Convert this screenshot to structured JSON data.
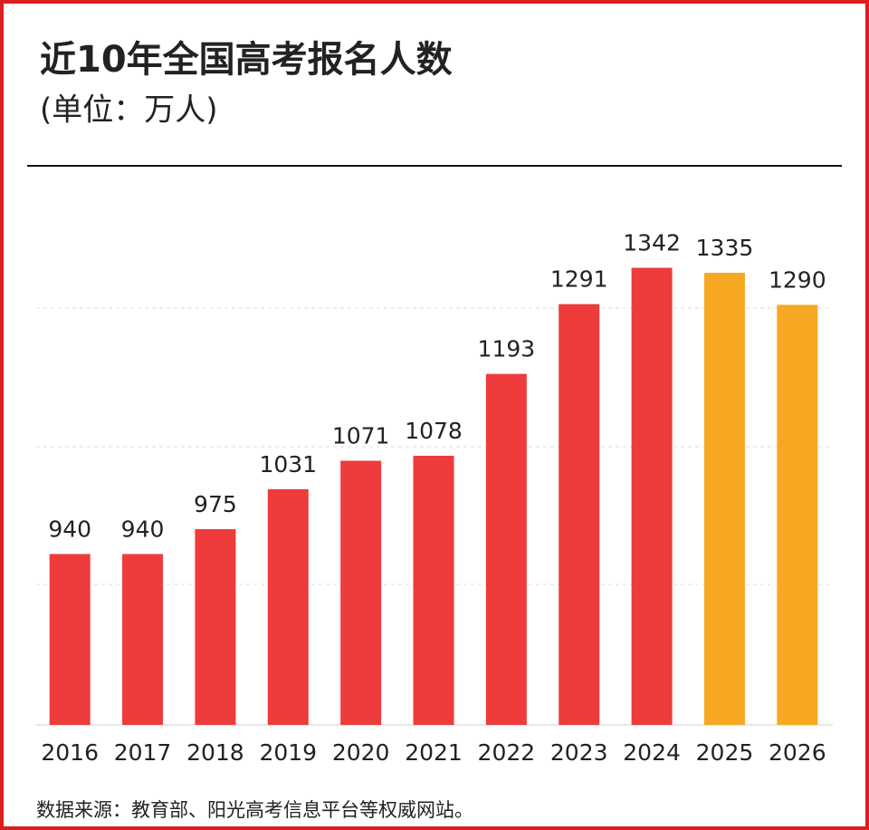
{
  "chart_data": {
    "type": "bar",
    "title": "近10年全国高考报名人数",
    "subtitle": "(单位：万人)",
    "source": "数据来源：教育部、阳光高考信息平台等权威网站。",
    "categories": [
      "2016",
      "2017",
      "2018",
      "2019",
      "2020",
      "2021",
      "2022",
      "2023",
      "2024",
      "2025",
      "2026"
    ],
    "values": [
      940,
      940,
      975,
      1031,
      1071,
      1078,
      1193,
      1291,
      1342,
      1335,
      1290
    ],
    "colors": [
      "#ee3b3b",
      "#ee3b3b",
      "#ee3b3b",
      "#ee3b3b",
      "#ee3b3b",
      "#ee3b3b",
      "#ee3b3b",
      "#ee3b3b",
      "#ee3b3b",
      "#f7a823",
      "#f7a823"
    ],
    "ylim": [
      700,
      1400
    ]
  }
}
